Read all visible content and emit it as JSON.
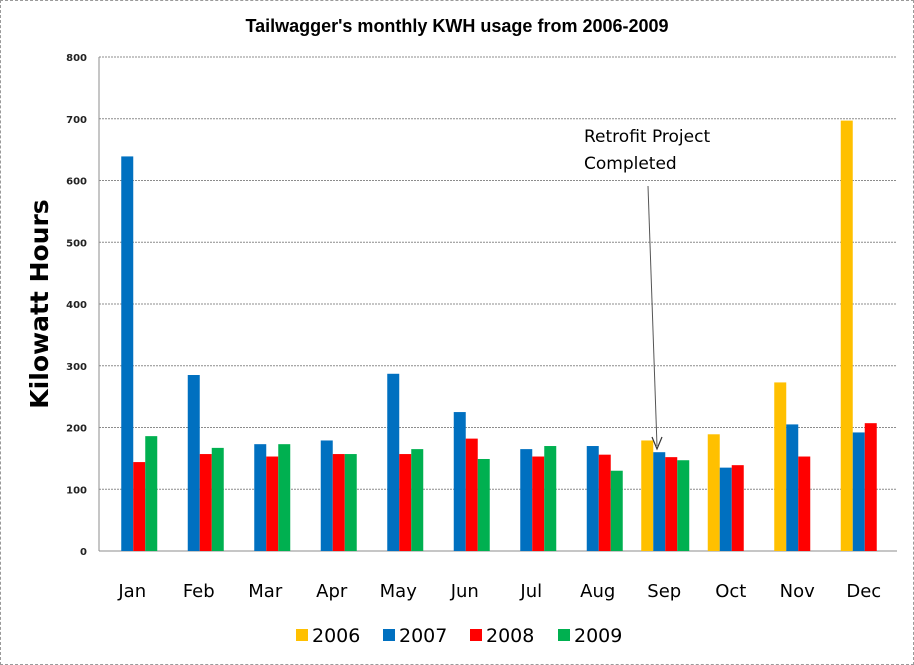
{
  "chart_data": {
    "type": "bar",
    "title": "Tailwagger's monthly KWH usage from 2006-2009",
    "xlabel": "",
    "ylabel": "Kilowatt Hours",
    "ylim": [
      0,
      800
    ],
    "yticks": [
      0,
      100,
      200,
      300,
      400,
      500,
      600,
      700,
      800
    ],
    "grid": true,
    "legend_position": "bottom",
    "categories": [
      "Jan",
      "Feb",
      "Mar",
      "Apr",
      "May",
      "Jun",
      "Jul",
      "Aug",
      "Sep",
      "Oct",
      "Nov",
      "Dec"
    ],
    "series": [
      {
        "name": "2006",
        "color": "#FFC000",
        "values": [
          null,
          null,
          null,
          null,
          null,
          null,
          null,
          null,
          179,
          189,
          273,
          697
        ]
      },
      {
        "name": "2007",
        "color": "#0070C0",
        "values": [
          639,
          285,
          173,
          179,
          287,
          225,
          165,
          170,
          160,
          135,
          205,
          192
        ]
      },
      {
        "name": "2008",
        "color": "#FF0000",
        "values": [
          144,
          157,
          153,
          157,
          157,
          182,
          153,
          156,
          152,
          139,
          153,
          207
        ]
      },
      {
        "name": "2009",
        "color": "#00B050",
        "values": [
          186,
          167,
          173,
          157,
          165,
          149,
          170,
          130,
          147,
          null,
          null,
          null
        ]
      }
    ],
    "annotations": [
      {
        "text_lines": [
          "Retrofit Project",
          "Completed"
        ],
        "points_to": {
          "category": "Sep",
          "series": "2007"
        }
      }
    ]
  }
}
